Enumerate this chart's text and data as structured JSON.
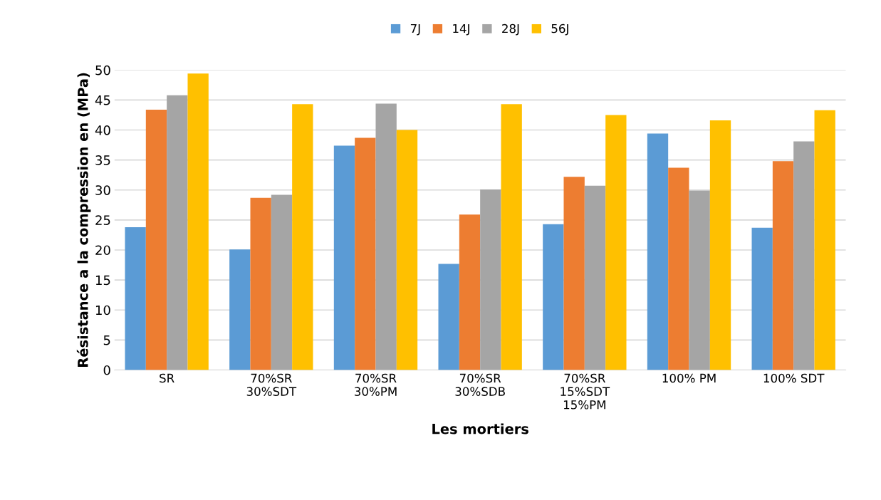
{
  "chart_data": {
    "type": "bar",
    "xlabel": "Les mortiers",
    "ylabel": "Résistance a la compression en (MPa)",
    "categories": [
      "SR",
      "70%SR\n30%SDT",
      "70%SR\n30%PM",
      "70%SR\n30%SDB",
      "70%SR\n15%SDT\n15%PM",
      "100% PM",
      "100% SDT"
    ],
    "series": [
      {
        "name": "7J",
        "color": "#5b9bd5",
        "values": [
          23.8,
          20.1,
          37.4,
          17.7,
          24.3,
          39.4,
          23.7
        ]
      },
      {
        "name": "14J",
        "color": "#ed7d31",
        "values": [
          43.4,
          28.7,
          38.7,
          25.9,
          32.2,
          33.7,
          34.8
        ]
      },
      {
        "name": "28J",
        "color": "#a5a5a5",
        "values": [
          45.8,
          29.2,
          44.4,
          30.1,
          30.7,
          29.9,
          38.1
        ]
      },
      {
        "name": "56J",
        "color": "#ffc000",
        "values": [
          49.4,
          44.3,
          40.0,
          44.3,
          42.5,
          41.6,
          43.3
        ]
      }
    ],
    "ylim": [
      0,
      50
    ],
    "yticks": [
      0,
      5,
      10,
      15,
      20,
      25,
      30,
      35,
      40,
      45,
      50
    ],
    "grid": "y",
    "legend": "top"
  }
}
